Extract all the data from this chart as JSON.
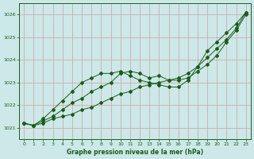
{
  "xlabel": "Graphe pression niveau de la mer (hPa)",
  "ylim": [
    1020.5,
    1026.5
  ],
  "xlim": [
    -0.5,
    23.5
  ],
  "yticks": [
    1021,
    1022,
    1023,
    1024,
    1025,
    1026
  ],
  "xticks": [
    0,
    1,
    2,
    3,
    4,
    5,
    6,
    7,
    8,
    9,
    10,
    11,
    12,
    13,
    14,
    15,
    16,
    17,
    18,
    19,
    20,
    21,
    22,
    23
  ],
  "bg_color": "#cce8e8",
  "line_color": "#1a5c1a",
  "grid_color": "#d4a0a0",
  "series": [
    [
      1021.2,
      1021.1,
      1021.2,
      1021.4,
      1021.5,
      1021.6,
      1021.8,
      1021.9,
      1022.1,
      1022.3,
      1022.5,
      1022.6,
      1022.8,
      1022.9,
      1023.0,
      1023.1,
      1023.2,
      1023.4,
      1023.7,
      1024.1,
      1024.5,
      1024.9,
      1025.4,
      1026.1
    ],
    [
      1021.2,
      1021.1,
      1021.3,
      1021.5,
      1021.8,
      1022.1,
      1022.3,
      1022.6,
      1022.8,
      1023.0,
      1023.4,
      1023.5,
      1023.4,
      1023.2,
      1023.3,
      1023.1,
      1023.1,
      1023.2,
      1023.5,
      1023.8,
      1024.2,
      1024.8,
      1025.3,
      1026.0
    ],
    [
      1021.2,
      1021.1,
      1021.4,
      1021.8,
      1022.2,
      1022.6,
      1023.0,
      1023.2,
      1023.4,
      1023.4,
      1023.5,
      1023.3,
      1023.1,
      1023.0,
      1022.9,
      1022.8,
      1022.8,
      1023.1,
      1023.7,
      1024.4,
      1024.8,
      1025.2,
      1025.6,
      1026.1
    ]
  ]
}
